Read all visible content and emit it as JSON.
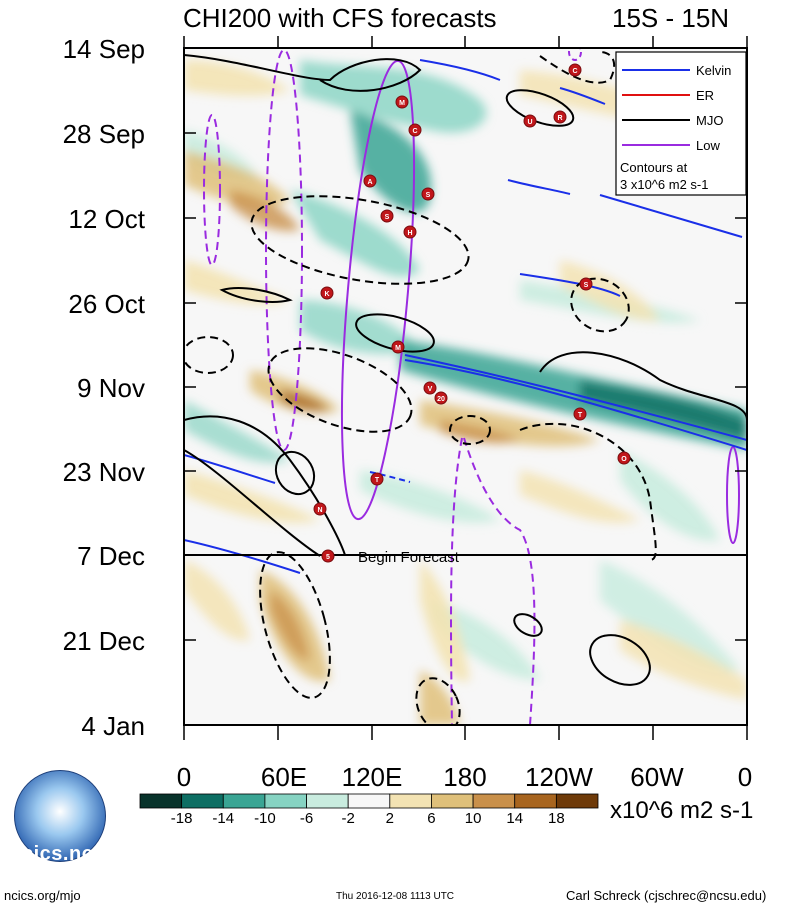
{
  "title_left": "CHI200 with CFS forecasts",
  "title_right": "15S - 15N",
  "forecast_label": "Begin Forecast",
  "footer": {
    "left": "ncics.org/mjo",
    "center": "Thu 2016-12-08 1113 UTC",
    "right": "Carl Schreck (cjschrec@ncsu.edu)"
  },
  "logo": {
    "text": "cics.nc"
  },
  "legend": {
    "items": [
      {
        "label": "Kelvin",
        "color": "#1a2fe8"
      },
      {
        "label": "ER",
        "color": "#e01010"
      },
      {
        "label": "MJO",
        "color": "#000000"
      },
      {
        "label": "Low",
        "color": "#9a2be0"
      }
    ],
    "note_line1": "Contours at",
    "note_line2": "3 x10^6 m2 s-1"
  },
  "chart_data": {
    "type": "heatmap",
    "title": "CHI200 with CFS forecasts",
    "subtitle": "15S - 15N",
    "x_tick_labels": [
      "0",
      "60E",
      "120E",
      "180",
      "120W",
      "60W",
      "0"
    ],
    "y_tick_labels": [
      "14 Sep",
      "28 Sep",
      "12 Oct",
      "26 Oct",
      "9 Nov",
      "23 Nov",
      "7 Dec",
      "21 Dec",
      "4 Jan"
    ],
    "xlim": [
      0,
      360
    ],
    "ylim": [
      "2016-09-14",
      "2017-01-04"
    ],
    "forecast_start": "2016-12-07",
    "colorbar": {
      "unit": "x10^6 m2 s-1",
      "tick_labels": [
        "-18",
        "-14",
        "-10",
        "-6",
        "-2",
        "2",
        "6",
        "10",
        "14",
        "18"
      ],
      "colors": [
        "#08332b",
        "#0d6e63",
        "#3aa594",
        "#86d3c2",
        "#c9ecdf",
        "#f7f7f7",
        "#f3e3b3",
        "#dfc07a",
        "#c9904a",
        "#a8651f",
        "#6e3a09"
      ]
    },
    "storm_markers": [
      {
        "letter": "C"
      },
      {
        "letter": "M"
      },
      {
        "letter": "U"
      },
      {
        "letter": "R"
      },
      {
        "letter": "C"
      },
      {
        "letter": "A"
      },
      {
        "letter": "S"
      },
      {
        "letter": "S"
      },
      {
        "letter": "H"
      },
      {
        "letter": "S"
      },
      {
        "letter": "K"
      },
      {
        "letter": "M"
      },
      {
        "letter": "V"
      },
      {
        "letter": "20"
      },
      {
        "letter": "T"
      },
      {
        "letter": "O"
      },
      {
        "letter": "T"
      },
      {
        "letter": "N"
      },
      {
        "letter": "5"
      }
    ]
  }
}
